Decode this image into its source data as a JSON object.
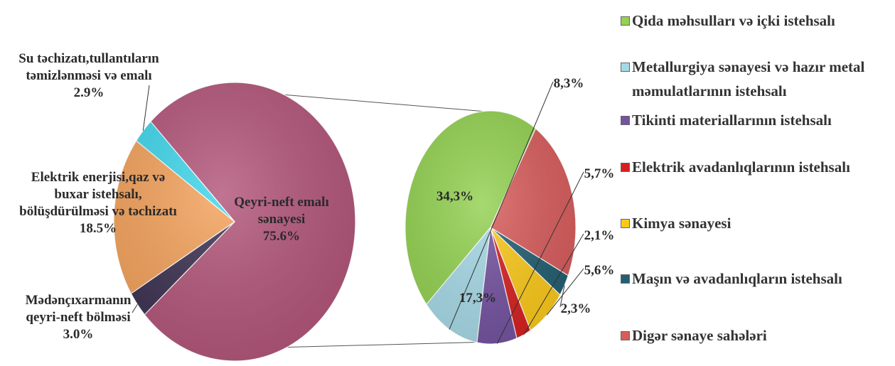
{
  "chart_data": [
    {
      "type": "pie",
      "slices": [
        {
          "label": [
            "Qeyri-neft emalı",
            "sənayesi"
          ],
          "value": 75.6,
          "value_text": "75.6%",
          "color": "#b3567a"
        },
        {
          "label": [
            "Mədənçıxarmanın",
            "qeyri-neft bölməsi"
          ],
          "value": 3.0,
          "value_text": "3.0%",
          "color": "#3d3252"
        },
        {
          "label": [
            "Elektrik  enerjisi,qaz və",
            "buxar   istehsalı,",
            "bölüşdürülməsi  və təchizatı"
          ],
          "value": 18.5,
          "value_text": "18.5%",
          "color": "#f4a25c"
        },
        {
          "label": [
            "Su təchizatı,tullantıların",
            "təmizlənməsi və emalı"
          ],
          "value": 2.9,
          "value_text": "2.9%",
          "color": "#3fd6ea"
        }
      ]
    },
    {
      "type": "pie",
      "slices": [
        {
          "name": "Qida məhsulları və içki  istehsalı",
          "value": 34.3,
          "value_text": "34,3%",
          "color": "#93d151"
        },
        {
          "name": "Metallurgiya sənayesi və hazır metal məmulatlarının istehsalı",
          "value": 8.3,
          "value_text": "8,3%",
          "color": "#a6d9e6"
        },
        {
          "name": "Tikinti materiallarının istehsalı",
          "value": 5.7,
          "value_text": "5,7%",
          "color": "#7453a0"
        },
        {
          "name": "Elektrik avadanlıqlarının istehsalı",
          "value": 2.1,
          "value_text": "2,1%",
          "color": "#d62020"
        },
        {
          "name": "Kimya sənayesi",
          "value": 5.6,
          "value_text": "5,6%",
          "color": "#fbc91a"
        },
        {
          "name": "Maşın və avadanlıqların istehsalı",
          "value": 2.3,
          "value_text": "2,3%",
          "color": "#235f72"
        },
        {
          "name": "Digər sənaye sahələri",
          "value": 17.3,
          "value_text": "17,3%",
          "color": "#d85c5c"
        }
      ]
    }
  ],
  "legend": [
    {
      "label": "Qida məhsulları və içki  istehsalı",
      "color": "#93d151"
    },
    {
      "label": [
        "Metallurgiya sənayesi və hazır metal",
        "məmulatlarının istehsalı"
      ],
      "color": "#a6d9e6"
    },
    {
      "label": "Tikinti materiallarının istehsalı",
      "color": "#7453a0"
    },
    {
      "label": "Elektrik avadanlıqlarının istehsalı",
      "color": "#d62020"
    },
    {
      "label": "Kimya sənayesi",
      "color": "#fbc91a"
    },
    {
      "label": "Maşın və avadanlıqların istehsalı",
      "color": "#235f72"
    },
    {
      "label": "Digər sənaye sahələri",
      "color": "#d85c5c"
    }
  ]
}
